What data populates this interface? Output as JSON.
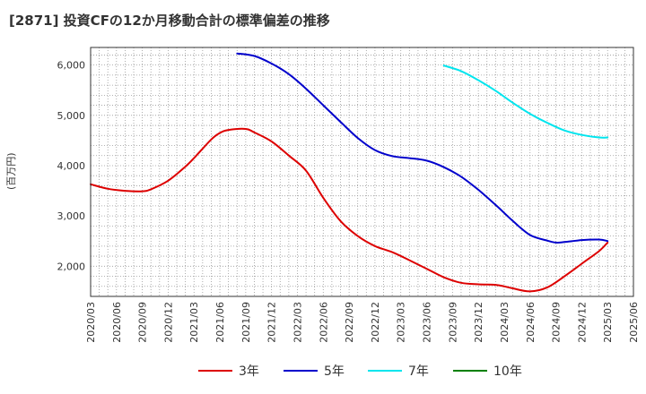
{
  "header": {
    "title": "[2871]  投資CFの12か月移動合計の標準偏差の推移"
  },
  "chart_data": {
    "type": "line",
    "title": "[2871]  投資CFの12か月移動合計の標準偏差の推移",
    "ylabel": "(百万円)",
    "xlabel": "",
    "ylim": [
      1400,
      6350
    ],
    "yticks": [
      2000,
      3000,
      4000,
      5000,
      6000
    ],
    "ytick_labels": [
      "2,000",
      "3,000",
      "4,000",
      "5,000",
      "6,000"
    ],
    "x_range": [
      "2020/03",
      "2025/06"
    ],
    "xtick_labels": [
      "2020/03",
      "2020/06",
      "2020/09",
      "2020/12",
      "2021/03",
      "2021/06",
      "2021/09",
      "2021/12",
      "2022/03",
      "2022/06",
      "2022/09",
      "2022/12",
      "2023/03",
      "2023/06",
      "2023/09",
      "2023/12",
      "2024/03",
      "2024/06",
      "2024/09",
      "2024/12",
      "2025/03",
      "2025/06"
    ],
    "grid": true,
    "legend_position": "bottom",
    "series": [
      {
        "name": "3年",
        "color": "#dd0000",
        "x": [
          "2020/03",
          "2020/05",
          "2020/07",
          "2020/09",
          "2020/10",
          "2020/12",
          "2021/02",
          "2021/03",
          "2021/05",
          "2021/06",
          "2021/07",
          "2021/09",
          "2021/10",
          "2021/12",
          "2022/02",
          "2022/04",
          "2022/06",
          "2022/08",
          "2022/10",
          "2022/12",
          "2023/02",
          "2023/04",
          "2023/06",
          "2023/08",
          "2023/10",
          "2023/12",
          "2024/02",
          "2024/03",
          "2024/04",
          "2024/06",
          "2024/08",
          "2024/10",
          "2024/12",
          "2025/02",
          "2025/03"
        ],
        "values": [
          3630,
          3540,
          3500,
          3490,
          3530,
          3700,
          3980,
          4150,
          4520,
          4650,
          4710,
          4730,
          4660,
          4480,
          4200,
          3900,
          3360,
          2900,
          2600,
          2400,
          2280,
          2120,
          1950,
          1780,
          1670,
          1640,
          1630,
          1600,
          1560,
          1500,
          1580,
          1800,
          2050,
          2300,
          2470
        ]
      },
      {
        "name": "5年",
        "color": "#0000cc",
        "x": [
          "2021/08",
          "2021/10",
          "2021/12",
          "2022/02",
          "2022/04",
          "2022/06",
          "2022/08",
          "2022/10",
          "2022/12",
          "2023/02",
          "2023/04",
          "2023/06",
          "2023/08",
          "2023/10",
          "2023/12",
          "2024/02",
          "2024/04",
          "2024/06",
          "2024/08",
          "2024/09",
          "2024/10",
          "2024/12",
          "2025/02",
          "2025/03"
        ],
        "values": [
          6230,
          6180,
          6030,
          5820,
          5530,
          5200,
          4870,
          4550,
          4310,
          4190,
          4150,
          4100,
          3970,
          3780,
          3520,
          3220,
          2900,
          2620,
          2510,
          2470,
          2480,
          2520,
          2530,
          2500
        ]
      },
      {
        "name": "7年",
        "color": "#00e5ee",
        "x": [
          "2023/08",
          "2023/10",
          "2023/12",
          "2024/02",
          "2024/04",
          "2024/06",
          "2024/08",
          "2024/10",
          "2024/12",
          "2025/02",
          "2025/03"
        ],
        "values": [
          5990,
          5880,
          5700,
          5490,
          5250,
          5030,
          4850,
          4700,
          4610,
          4560,
          4560
        ]
      },
      {
        "name": "10年",
        "color": "#008000",
        "x": [],
        "values": []
      }
    ]
  }
}
